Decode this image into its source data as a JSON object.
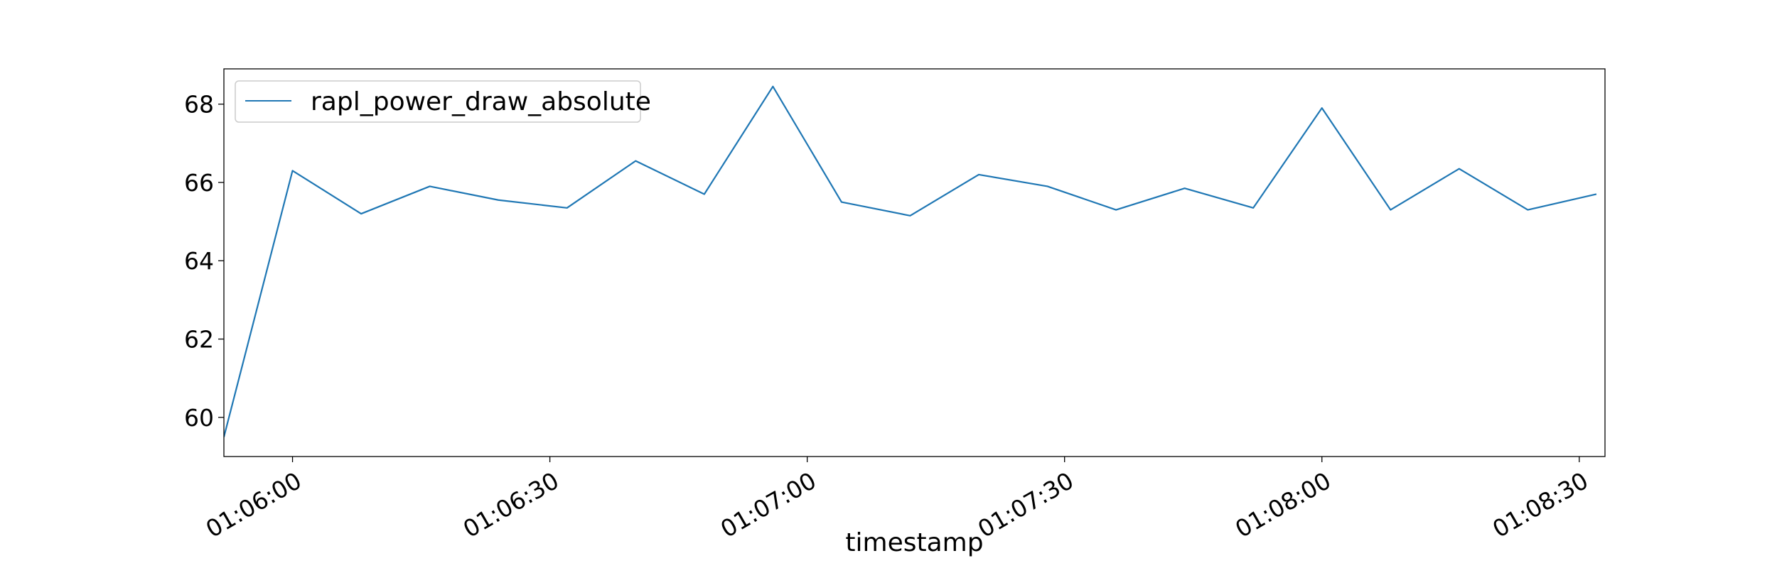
{
  "chart_data": {
    "type": "line",
    "xlabel": "timestamp",
    "ylabel": "",
    "x": [
      "01:05:52",
      "01:06:00",
      "01:06:08",
      "01:06:16",
      "01:06:24",
      "01:06:32",
      "01:06:40",
      "01:06:48",
      "01:06:56",
      "01:07:04",
      "01:07:12",
      "01:07:20",
      "01:07:28",
      "01:07:36",
      "01:07:44",
      "01:07:52",
      "01:08:00",
      "01:08:08",
      "01:08:16",
      "01:08:24",
      "01:08:32"
    ],
    "xlim": [
      "01:05:52",
      "01:08:33"
    ],
    "ylim": [
      59.0,
      68.9
    ],
    "yticks": [
      60,
      62,
      64,
      66,
      68
    ],
    "ytick_labels": [
      "60",
      "62",
      "64",
      "66",
      "68"
    ],
    "xticks": [
      "01:06:00",
      "01:06:30",
      "01:07:00",
      "01:07:30",
      "01:08:00",
      "01:08:30"
    ],
    "xtick_labels": [
      "01:06:00",
      "01:06:30",
      "01:07:00",
      "01:07:30",
      "01:08:00",
      "01:08:30"
    ],
    "series": [
      {
        "name": "rapl_power_draw_absolute",
        "color": "#1f77b4",
        "values": [
          59.5,
          66.3,
          65.2,
          65.9,
          65.55,
          65.35,
          66.55,
          65.7,
          68.45,
          65.5,
          65.15,
          66.2,
          65.9,
          65.3,
          65.85,
          65.35,
          67.9,
          65.3,
          66.35,
          65.3,
          65.7
        ]
      }
    ],
    "legend_position": "top-left",
    "grid": false
  }
}
